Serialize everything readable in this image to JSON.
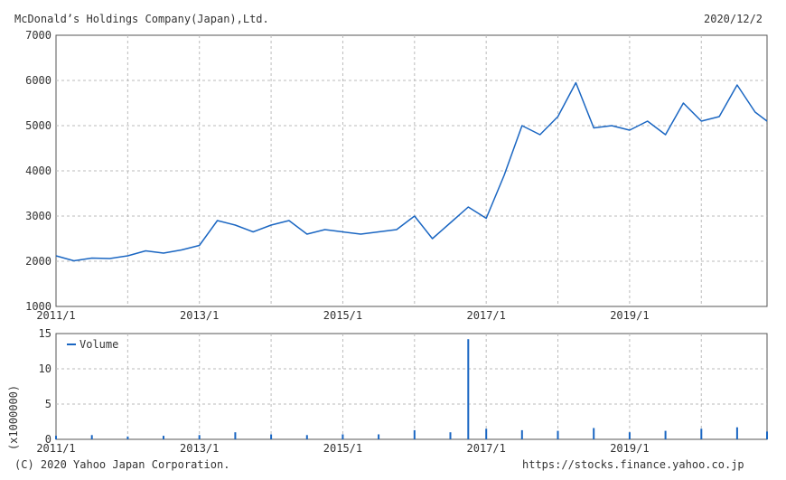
{
  "header": {
    "company": "McDonald’s Holdings Company(Japan),Ltd.",
    "date": "2020/12/2"
  },
  "footer": {
    "copyright": "(C) 2020 Yahoo Japan Corporation.",
    "source_url": "https://stocks.finance.yahoo.co.jp"
  },
  "colors": {
    "line": "#1a66c2",
    "grid": "#bbbbbb",
    "axis": "#555555"
  },
  "chart_data": [
    {
      "type": "line",
      "title": "McDonald’s Holdings Company(Japan),Ltd.",
      "x_ticks": [
        "2011/1",
        "2013/1",
        "2015/1",
        "2017/1",
        "2019/1"
      ],
      "ylim": [
        1000,
        7000
      ],
      "y_ticks": [
        1000,
        2000,
        3000,
        4000,
        5000,
        6000,
        7000
      ],
      "grid": true,
      "x": [
        "2011/1",
        "2011/4",
        "2011/7",
        "2011/10",
        "2012/1",
        "2012/4",
        "2012/7",
        "2012/10",
        "2013/1",
        "2013/4",
        "2013/7",
        "2013/10",
        "2014/1",
        "2014/4",
        "2014/7",
        "2014/10",
        "2015/1",
        "2015/4",
        "2015/7",
        "2015/10",
        "2016/1",
        "2016/4",
        "2016/7",
        "2016/10",
        "2017/1",
        "2017/4",
        "2017/7",
        "2017/10",
        "2018/1",
        "2018/4",
        "2018/7",
        "2018/10",
        "2019/1",
        "2019/4",
        "2019/7",
        "2019/10",
        "2020/1",
        "2020/4",
        "2020/7",
        "2020/10",
        "2020/12"
      ],
      "values": [
        2120,
        2010,
        2070,
        2060,
        2120,
        2230,
        2180,
        2250,
        2350,
        2900,
        2800,
        2650,
        2800,
        2900,
        2600,
        2700,
        2650,
        2600,
        2650,
        2700,
        3000,
        2500,
        2850,
        3200,
        2950,
        3900,
        5000,
        4800,
        5200,
        5950,
        4950,
        5000,
        4900,
        5100,
        4800,
        5500,
        5100,
        5200,
        5900,
        5300,
        5100
      ],
      "series": [
        {
          "name": "",
          "values": "values"
        }
      ]
    },
    {
      "type": "bar",
      "legend": [
        "Volume"
      ],
      "legend_position": "top-left",
      "ylabel": "(x1000000)",
      "ylim": [
        0,
        15
      ],
      "y_ticks": [
        0,
        5,
        10,
        15
      ],
      "x_ticks": [
        "2011/1",
        "2013/1",
        "2015/1",
        "2017/1",
        "2019/1"
      ],
      "grid": true,
      "x": [
        "2011/1",
        "2011/7",
        "2012/1",
        "2012/7",
        "2013/1",
        "2013/7",
        "2014/1",
        "2014/7",
        "2015/1",
        "2015/7",
        "2016/1",
        "2016/7",
        "2016/10",
        "2017/1",
        "2017/7",
        "2018/1",
        "2018/7",
        "2019/1",
        "2019/7",
        "2020/1",
        "2020/7",
        "2020/12"
      ],
      "values": [
        0.5,
        0.6,
        0.4,
        0.5,
        0.6,
        1.0,
        0.7,
        0.6,
        0.7,
        0.7,
        1.3,
        1.0,
        14.2,
        1.5,
        1.3,
        1.2,
        1.6,
        1.0,
        1.2,
        1.5,
        1.7,
        1.1
      ],
      "series": [
        {
          "name": "Volume",
          "values": "values"
        }
      ]
    }
  ]
}
